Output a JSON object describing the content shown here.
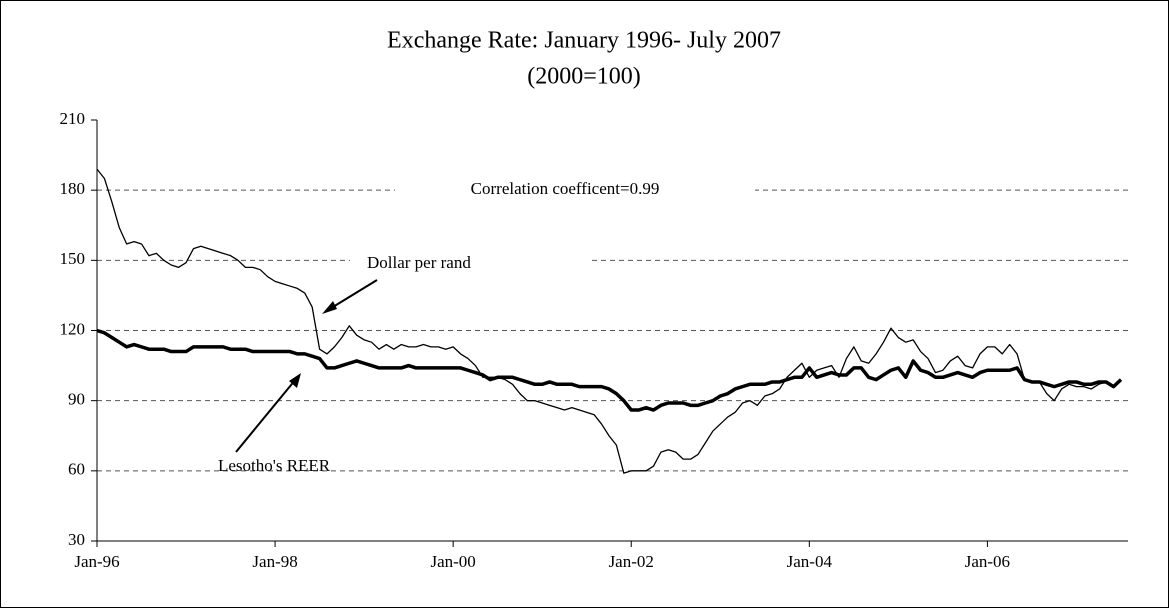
{
  "chart_data": {
    "type": "line",
    "title": "Exchange Rate: January 1996- July 2007",
    "subtitle": "(2000=100)",
    "annotations": [
      "Correlation coefficent=0.99"
    ],
    "categories": [
      "Jan-96",
      null,
      null,
      null,
      null,
      null,
      null,
      null,
      null,
      null,
      null,
      null,
      null,
      null,
      null,
      null,
      null,
      null,
      null,
      null,
      null,
      null,
      null,
      null,
      "Jan-98",
      null,
      null,
      null,
      null,
      null,
      null,
      null,
      null,
      null,
      null,
      null,
      null,
      null,
      null,
      null,
      null,
      null,
      null,
      null,
      null,
      null,
      null,
      null,
      "Jan-00",
      null,
      null,
      null,
      null,
      null,
      null,
      null,
      null,
      null,
      null,
      null,
      null,
      null,
      null,
      null,
      null,
      null,
      null,
      null,
      null,
      null,
      null,
      null,
      "Jan-02",
      null,
      null,
      null,
      null,
      null,
      null,
      null,
      null,
      null,
      null,
      null,
      null,
      null,
      null,
      null,
      null,
      null,
      null,
      null,
      null,
      null,
      null,
      null,
      "Jan-04",
      null,
      null,
      null,
      null,
      null,
      null,
      null,
      null,
      null,
      null,
      null,
      null,
      null,
      null,
      null,
      null,
      null,
      null,
      null,
      null,
      null,
      null,
      null,
      "Jan-06",
      null,
      null,
      null,
      null,
      null,
      null,
      null,
      null,
      null,
      null,
      null,
      null,
      null,
      null,
      null,
      null,
      null,
      null
    ],
    "series": [
      {
        "name": "Dollar per rand",
        "color": "#000000",
        "values": [
          189,
          185,
          175,
          164,
          157,
          158,
          157,
          152,
          153,
          150,
          148,
          147,
          149,
          155,
          156,
          155,
          154,
          153,
          152,
          150,
          147,
          147,
          146,
          143,
          141,
          140,
          139,
          138,
          136,
          130,
          112,
          110,
          113,
          117,
          122,
          118,
          116,
          115,
          112,
          114,
          112,
          114,
          113,
          113,
          114,
          113,
          113,
          112,
          113,
          110,
          108,
          105,
          100,
          100,
          100,
          99,
          97,
          93,
          90,
          90,
          89,
          88,
          87,
          86,
          87,
          86,
          85,
          84,
          80,
          75,
          71,
          59,
          60,
          60,
          60,
          62,
          68,
          69,
          68,
          65,
          65,
          67,
          72,
          77,
          80,
          83,
          85,
          89,
          90,
          88,
          92,
          93,
          95,
          100,
          103,
          106,
          100,
          103,
          104,
          105,
          100,
          108,
          113,
          107,
          106,
          110,
          115,
          121,
          117,
          115,
          116,
          111,
          108,
          102,
          103,
          107,
          109,
          105,
          104,
          110,
          113,
          113,
          110,
          114,
          110,
          99,
          98,
          98,
          93,
          90,
          95,
          97,
          96,
          96,
          95,
          97,
          98,
          96,
          99
        ]
      },
      {
        "name": "Lesotho's REER",
        "color": "#000000",
        "values": [
          120,
          119,
          117,
          115,
          113,
          114,
          113,
          112,
          112,
          112,
          111,
          111,
          111,
          113,
          113,
          113,
          113,
          113,
          112,
          112,
          112,
          111,
          111,
          111,
          111,
          111,
          111,
          110,
          110,
          109,
          108,
          104,
          104,
          105,
          106,
          107,
          106,
          105,
          104,
          104,
          104,
          104,
          105,
          104,
          104,
          104,
          104,
          104,
          104,
          104,
          103,
          102,
          101,
          99,
          100,
          100,
          100,
          99,
          98,
          97,
          97,
          98,
          97,
          97,
          97,
          96,
          96,
          96,
          96,
          95,
          93,
          90,
          86,
          86,
          87,
          86,
          88,
          89,
          89,
          89,
          88,
          88,
          89,
          90,
          92,
          93,
          95,
          96,
          97,
          97,
          97,
          98,
          98,
          99,
          100,
          100,
          104,
          100,
          101,
          102,
          101,
          101,
          104,
          104,
          100,
          99,
          101,
          103,
          104,
          100,
          107,
          103,
          102,
          100,
          100,
          101,
          102,
          101,
          100,
          102,
          103,
          103,
          103,
          103,
          104,
          99,
          98,
          98,
          97,
          96,
          97,
          98,
          98,
          97,
          97,
          98,
          98,
          96,
          99
        ]
      }
    ],
    "ylim": [
      30,
      210
    ],
    "yticks": [
      30,
      60,
      90,
      120,
      150,
      180,
      210
    ],
    "grid": true
  }
}
